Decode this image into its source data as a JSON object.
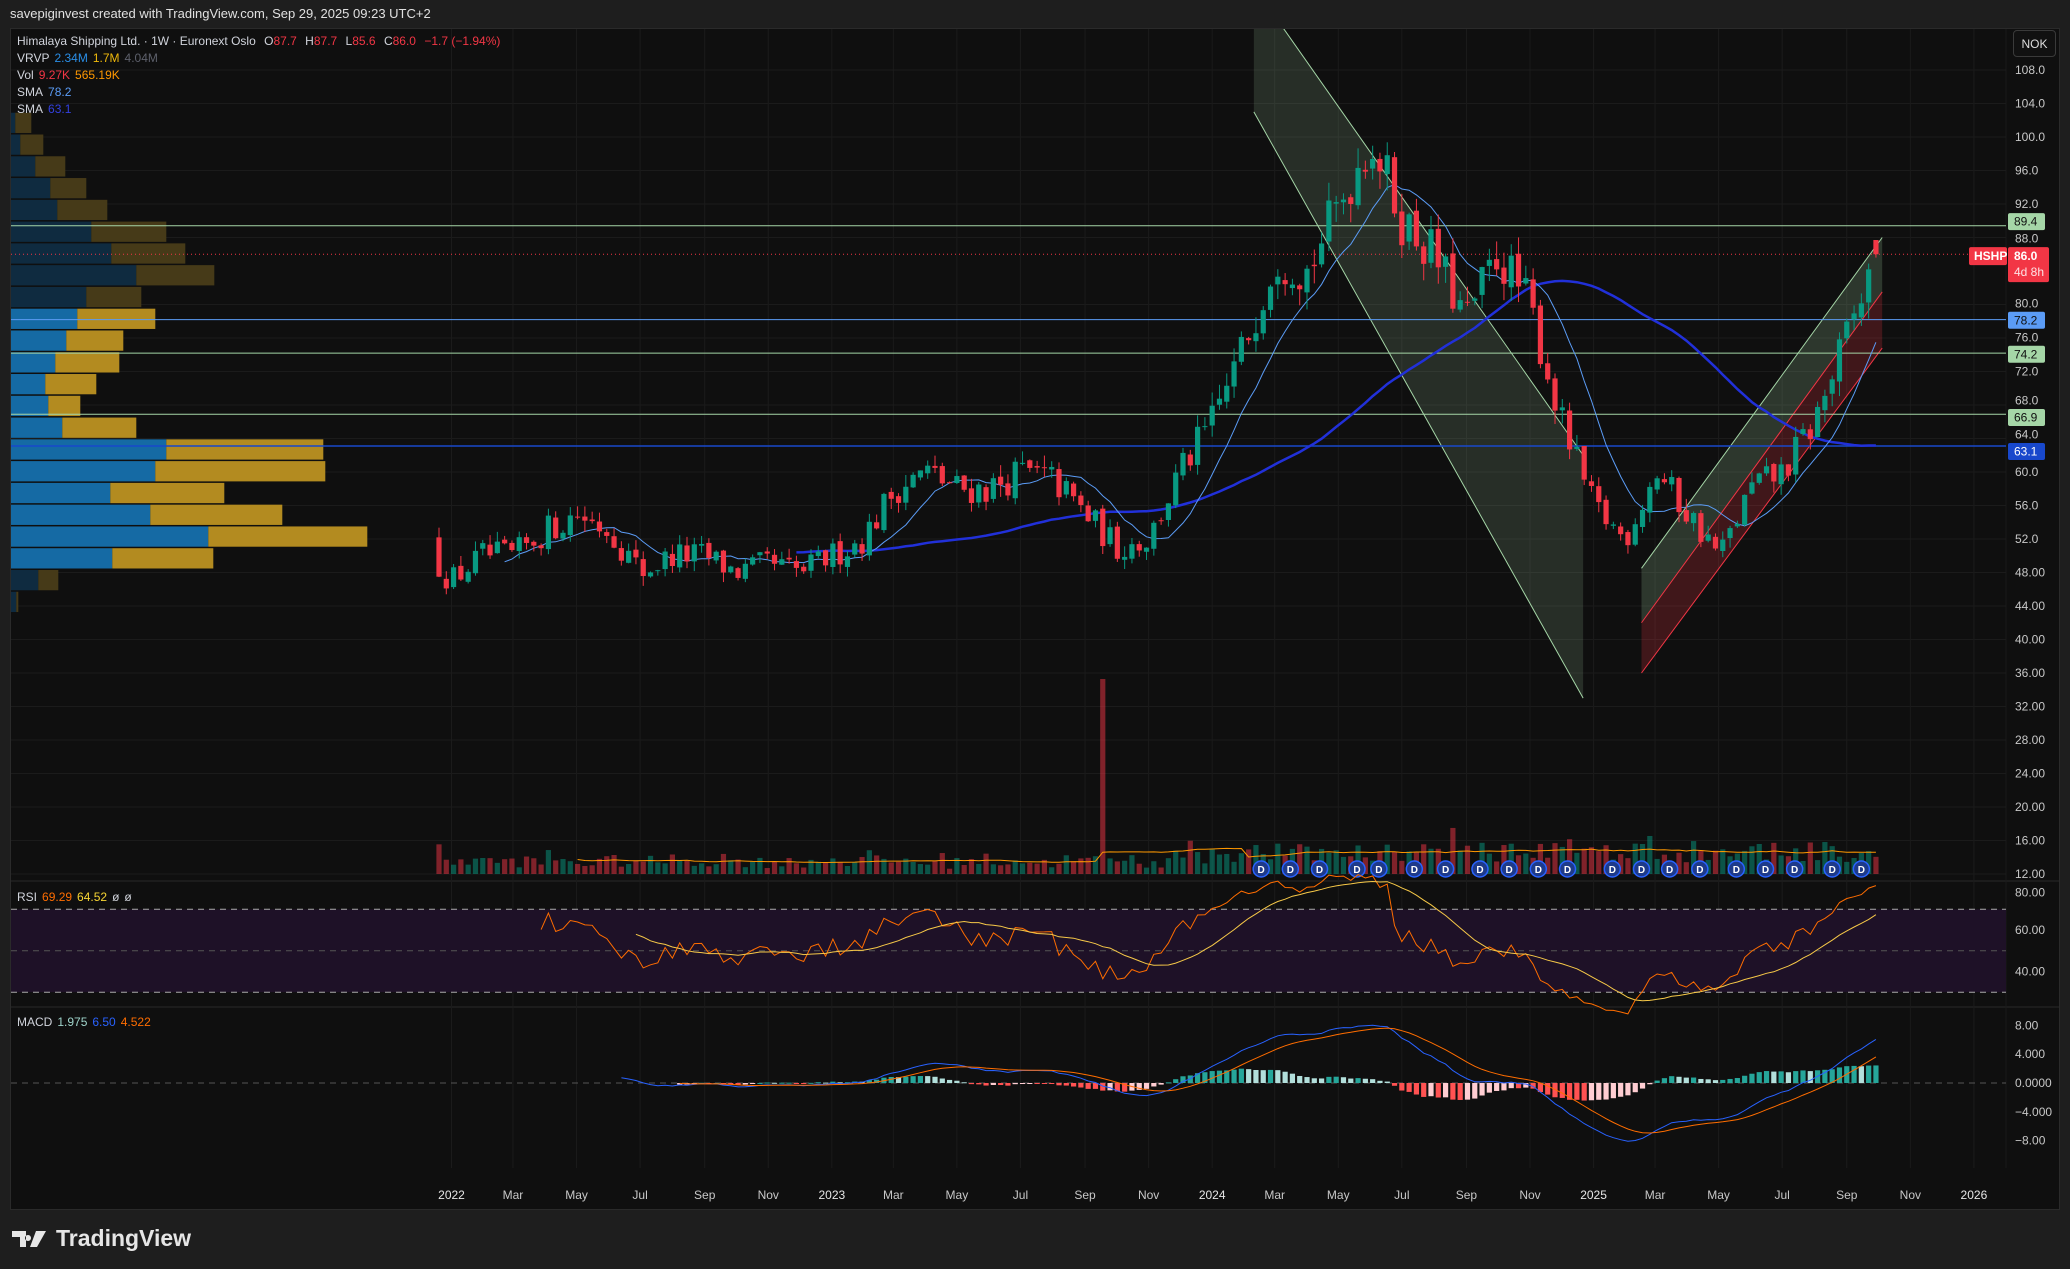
{
  "credit": "savepiginvest created with TradingView.com, Sep 29, 2025 09:23 UTC+2",
  "legend": {
    "symbol": "Himalaya Shipping Ltd. · 1W · Euronext Oslo",
    "o_label": "O",
    "o": "87.7",
    "h_label": "H",
    "h": "87.7",
    "l_label": "L",
    "l": "85.6",
    "c_label": "C",
    "c": "86.0",
    "change": "−1.7 (−1.94%)",
    "vrvp_label": "VRVP",
    "vrvp_up": "2.34M",
    "vrvp_down": "1.7M",
    "vrvp_total": "4.04M",
    "vol_label": "Vol",
    "vol": "9.27K",
    "vol_ma": "565.19K",
    "sma1_label": "SMA",
    "sma1": "78.2",
    "sma2_label": "SMA",
    "sma2": "63.1",
    "rsi_label": "RSI",
    "rsi": "69.29",
    "rsi_ma": "64.52",
    "rsi_x1": "ø",
    "rsi_x2": "ø",
    "macd_label": "MACD",
    "macd_hist": "1.975",
    "macd": "6.50",
    "macd_signal": "4.522"
  },
  "currency_button": "NOK",
  "logo_text": "TradingView",
  "colors": {
    "up": "#089981",
    "down": "#f23645",
    "sma_fast": "#5b9cf6",
    "sma_slow": "#2130d9",
    "rsi": "#ff6d00",
    "rsi_ma": "#f7c948",
    "macd": "#2962ff",
    "signal": "#ff6d00"
  },
  "chart_data": {
    "type": "candlestick",
    "title": "Himalaya Shipping Ltd. · 1W · Euronext Oslo",
    "timeframe": "1W",
    "monthly_closes_start": "2021-12-01",
    "monthly_closes": [
      52,
      47,
      50,
      50,
      53,
      55,
      53,
      48,
      50,
      50,
      48,
      49,
      48,
      50,
      52,
      58,
      60,
      58,
      58,
      60,
      59,
      55,
      51,
      52,
      60,
      66,
      75,
      86,
      84,
      92,
      100,
      90,
      86,
      78,
      86,
      80,
      66,
      56,
      52,
      60,
      55,
      50,
      58,
      60,
      66,
      76,
      86
    ],
    "first_bar_date": "2021-12-20",
    "last_bar": {
      "open": 87.7,
      "high": 87.7,
      "low": 85.6,
      "close": 86.0
    },
    "volume_spike_date": "2023-09-18",
    "sma_periods": [
      10,
      50
    ],
    "ylim": [
      12,
      108
    ],
    "price_axis_ticks": [
      "108.0",
      "104.0",
      "100.0",
      "96.0",
      "92.0",
      "88.0",
      "80.0",
      "76.0",
      "72.0",
      "68.0",
      "64.0",
      "60.0",
      "56.0",
      "52.0",
      "48.00",
      "44.00",
      "40.00",
      "36.00",
      "32.00",
      "28.00",
      "24.00",
      "20.00",
      "16.00",
      "12.00"
    ],
    "rsi_axis_ticks": [
      "80.00",
      "60.00",
      "40.00"
    ],
    "rsi_bands": [
      70,
      50,
      30
    ],
    "macd_axis_ticks": [
      {
        "v": 8,
        "label": "8.00"
      },
      {
        "v": 4,
        "label": "4.000"
      },
      {
        "v": 0,
        "label": "0.0000"
      },
      {
        "v": -4,
        "label": "−4.000"
      },
      {
        "v": -8,
        "label": "−8.00"
      }
    ],
    "time_axis": [
      {
        "label": "2022",
        "date": "2022-01-01"
      },
      {
        "label": "Mar",
        "date": "2022-03-01"
      },
      {
        "label": "May",
        "date": "2022-05-01"
      },
      {
        "label": "Jul",
        "date": "2022-07-01"
      },
      {
        "label": "Sep",
        "date": "2022-09-01"
      },
      {
        "label": "Nov",
        "date": "2022-11-01"
      },
      {
        "label": "2023",
        "date": "2023-01-01"
      },
      {
        "label": "Mar",
        "date": "2023-03-01"
      },
      {
        "label": "May",
        "date": "2023-05-01"
      },
      {
        "label": "Jul",
        "date": "2023-07-01"
      },
      {
        "label": "Sep",
        "date": "2023-09-01"
      },
      {
        "label": "Nov",
        "date": "2023-11-01"
      },
      {
        "label": "2024",
        "date": "2024-01-01"
      },
      {
        "label": "Mar",
        "date": "2024-03-01"
      },
      {
        "label": "May",
        "date": "2024-05-01"
      },
      {
        "label": "Jul",
        "date": "2024-07-01"
      },
      {
        "label": "Sep",
        "date": "2024-09-01"
      },
      {
        "label": "Nov",
        "date": "2024-11-01"
      },
      {
        "label": "2025",
        "date": "2025-01-01"
      },
      {
        "label": "Mar",
        "date": "2025-03-01"
      },
      {
        "label": "May",
        "date": "2025-05-01"
      },
      {
        "label": "Jul",
        "date": "2025-07-01"
      },
      {
        "label": "Sep",
        "date": "2025-09-01"
      },
      {
        "label": "Nov",
        "date": "2025-11-01"
      },
      {
        "label": "2026",
        "date": "2026-01-01"
      }
    ],
    "horizontal_levels": [
      {
        "price": 89.4,
        "label": "89.4",
        "color": "#a5d6a7",
        "text": "#111111"
      },
      {
        "price": 78.2,
        "label": "78.2",
        "color": "#5b9cf6",
        "text": "#111111"
      },
      {
        "price": 74.2,
        "label": "74.2",
        "color": "#a5d6a7",
        "text": "#111111"
      },
      {
        "price": 66.9,
        "label": "66.9",
        "color": "#a5d6a7",
        "text": "#111111"
      },
      {
        "price": 63.1,
        "label": "63.1",
        "color": "#1848cc",
        "text": "#ffffff"
      }
    ],
    "last_price_label": {
      "ticker": "HSHP",
      "price": "86.0",
      "countdown": "4d 8h",
      "color": "#f23645"
    },
    "dividend_marker": "D",
    "dividend_dates": [
      "2024-02-17",
      "2024-03-16",
      "2024-04-13",
      "2024-05-19",
      "2024-06-09",
      "2024-07-13",
      "2024-08-12",
      "2024-09-14",
      "2024-10-12",
      "2024-11-09",
      "2024-12-07",
      "2025-01-19",
      "2025-02-16",
      "2025-03-15",
      "2025-04-13",
      "2025-05-18",
      "2025-06-15",
      "2025-07-13",
      "2025-08-18",
      "2025-09-15"
    ],
    "descending_channel": {
      "upper": [
        [
          "2024-02-10",
          118
        ],
        [
          "2024-12-22",
          62
        ]
      ],
      "lower": [
        [
          "2024-02-10",
          103
        ],
        [
          "2024-12-22",
          33
        ]
      ]
    },
    "ascending_channel": {
      "upper": [
        [
          "2025-02-16",
          48.5
        ],
        [
          "2025-10-05",
          88
        ]
      ],
      "middle": [
        [
          "2025-02-16",
          42
        ],
        [
          "2025-10-05",
          81.5
        ]
      ],
      "lower": [
        [
          "2025-02-16",
          36
        ],
        [
          "2025-10-05",
          74.8
        ]
      ]
    },
    "volume_profile": {
      "price_top": 102.9,
      "row_size": 2.6,
      "value_area_rows": [
        9,
        20
      ],
      "rows": [
        [
          4.3,
          16
        ],
        [
          9.3,
          23
        ],
        [
          24.3,
          30
        ],
        [
          39.3,
          36
        ],
        [
          46.3,
          50
        ],
        [
          80.3,
          75
        ],
        [
          100.3,
          74
        ],
        [
          125.3,
          78
        ],
        [
          75.3,
          55
        ],
        [
          66.3,
          78
        ],
        [
          55.3,
          57
        ],
        [
          44.3,
          64
        ],
        [
          34.3,
          51
        ],
        [
          37.3,
          32
        ],
        [
          51.3,
          74
        ],
        [
          155.3,
          157
        ],
        [
          144.3,
          170
        ],
        [
          99.3,
          114
        ],
        [
          139.3,
          132
        ],
        [
          197.3,
          159
        ],
        [
          101.3,
          101
        ],
        [
          27.3,
          20
        ],
        [
          5.3,
          2
        ]
      ]
    }
  }
}
